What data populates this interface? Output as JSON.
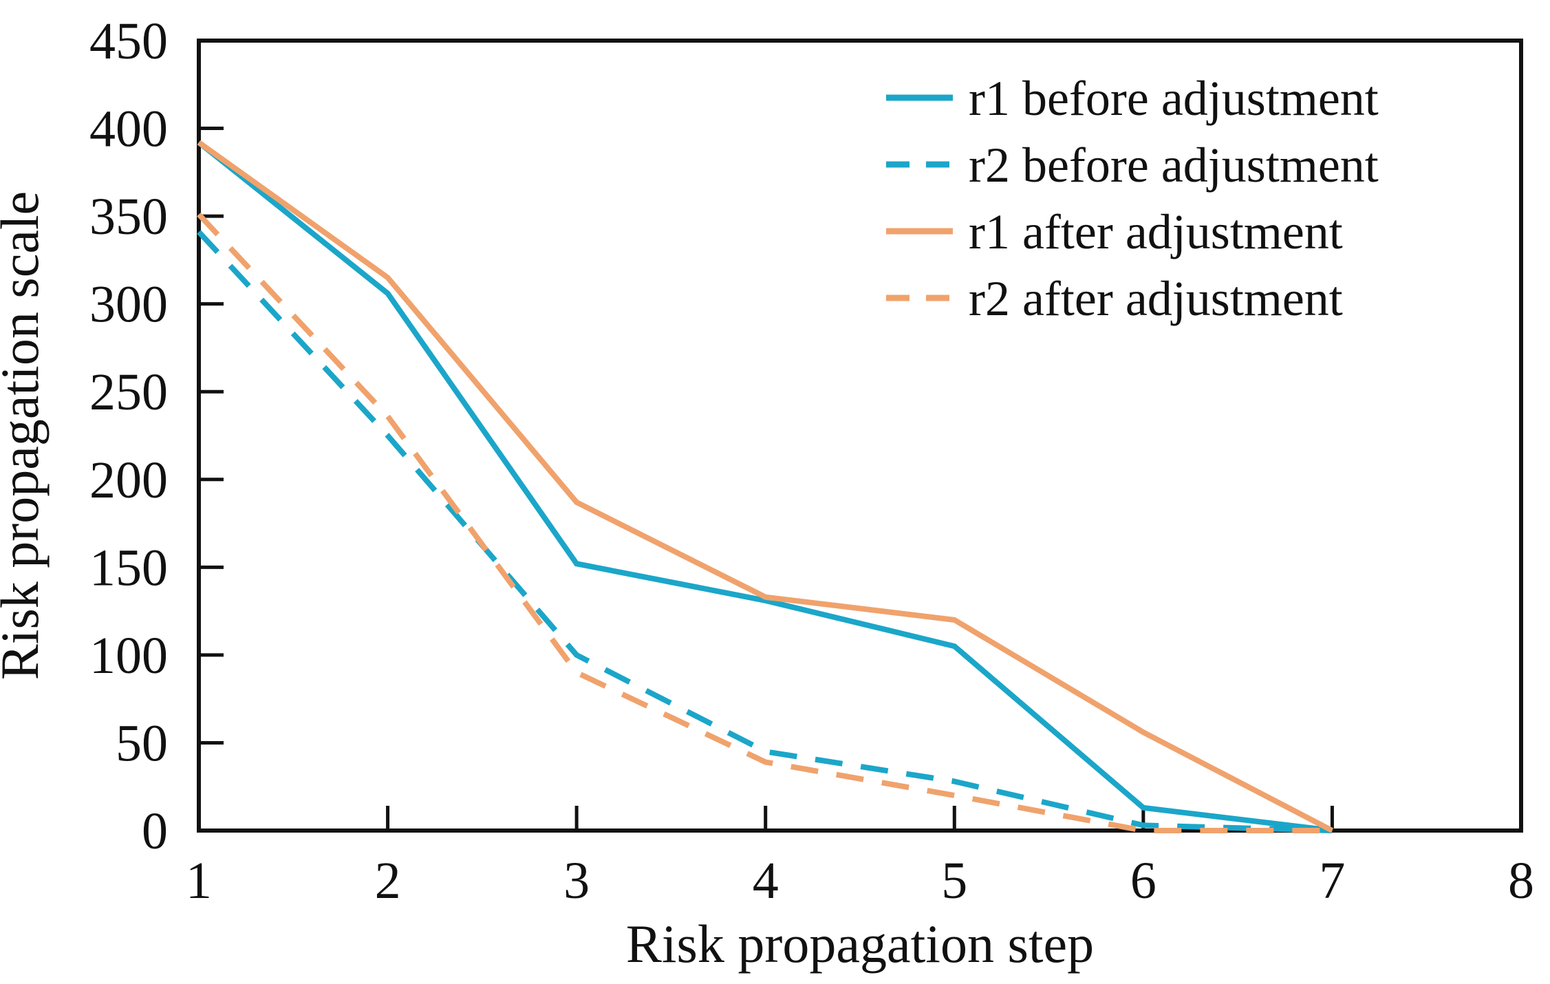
{
  "chart_data": {
    "type": "line",
    "title": "",
    "xlabel": "Risk propagation step",
    "ylabel": "Risk propagation scale",
    "xlim": [
      1,
      8
    ],
    "ylim": [
      0,
      450
    ],
    "xticks": [
      1,
      2,
      3,
      4,
      5,
      6,
      7,
      8
    ],
    "yticks": [
      0,
      50,
      100,
      150,
      200,
      250,
      300,
      350,
      400,
      450
    ],
    "grid": false,
    "legend_position": "top-right",
    "colors": {
      "cyan": "#1ba6c9",
      "orange": "#f0a26c",
      "axis": "#111111"
    },
    "x": [
      1,
      2,
      3,
      4,
      5,
      6,
      7
    ],
    "series": [
      {
        "name": "r1 before adjustment",
        "color_key": "cyan",
        "dashed": false,
        "values": [
          392,
          306,
          152,
          131,
          105,
          13,
          0
        ]
      },
      {
        "name": "r2 before adjustment",
        "color_key": "cyan",
        "dashed": true,
        "values": [
          341,
          225,
          100,
          45,
          28,
          3,
          0
        ]
      },
      {
        "name": "r1 after adjustment",
        "color_key": "orange",
        "dashed": false,
        "values": [
          392,
          315,
          187,
          133,
          120,
          56,
          0
        ]
      },
      {
        "name": "r2 after adjustment",
        "color_key": "orange",
        "dashed": true,
        "values": [
          351,
          236,
          90,
          39,
          20,
          0,
          0
        ]
      }
    ]
  }
}
